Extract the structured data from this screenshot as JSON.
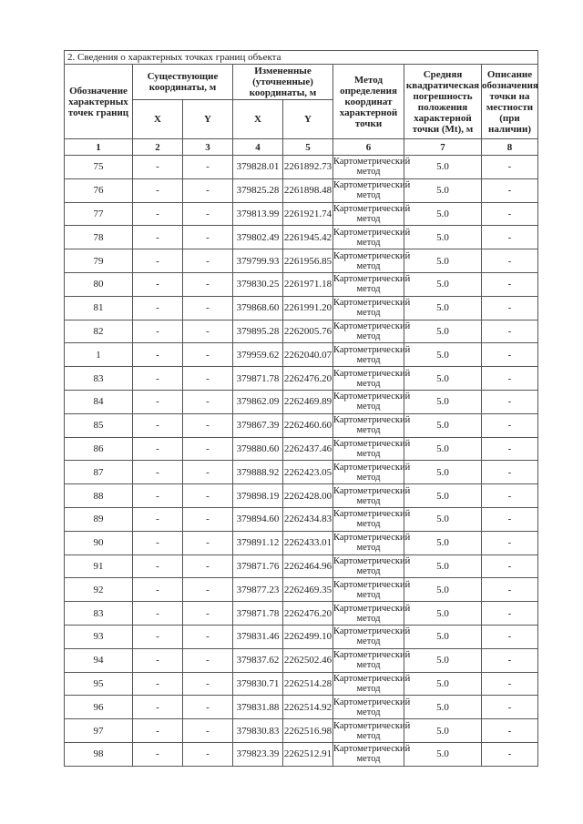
{
  "section_title": "2. Сведения о характерных точках границ объекта",
  "headers": {
    "point": "Обозначение характерных точек границ",
    "existing": "Существующие координаты, м",
    "changed": "Измененные (уточненные) координаты, м",
    "x": "X",
    "y": "Y",
    "method": "Метод определения координат характерной точки",
    "error": "Средняя квадратическая погрешность положения характерной точки (Mt), м",
    "description": "Описание обозначения точки на местности (при наличии)",
    "col_numbers": [
      "1",
      "2",
      "3",
      "4",
      "5",
      "6",
      "7",
      "8"
    ]
  },
  "rows": [
    [
      "75",
      "-",
      "-",
      "379828.01",
      "2261892.73",
      "Картометрический метод",
      "5.0",
      "-"
    ],
    [
      "76",
      "-",
      "-",
      "379825.28",
      "2261898.48",
      "Картометрический метод",
      "5.0",
      "-"
    ],
    [
      "77",
      "-",
      "-",
      "379813.99",
      "2261921.74",
      "Картометрический метод",
      "5.0",
      "-"
    ],
    [
      "78",
      "-",
      "-",
      "379802.49",
      "2261945.42",
      "Картометрический метод",
      "5.0",
      "-"
    ],
    [
      "79",
      "-",
      "-",
      "379799.93",
      "2261956.85",
      "Картометрический метод",
      "5.0",
      "-"
    ],
    [
      "80",
      "-",
      "-",
      "379830.25",
      "2261971.18",
      "Картометрический метод",
      "5.0",
      "-"
    ],
    [
      "81",
      "-",
      "-",
      "379868.60",
      "2261991.20",
      "Картометрический метод",
      "5.0",
      "-"
    ],
    [
      "82",
      "-",
      "-",
      "379895.28",
      "2262005.76",
      "Картометрический метод",
      "5.0",
      "-"
    ],
    [
      "1",
      "-",
      "-",
      "379959.62",
      "2262040.07",
      "Картометрический метод",
      "5.0",
      "-"
    ],
    [
      "83",
      "-",
      "-",
      "379871.78",
      "2262476.20",
      "Картометрический метод",
      "5.0",
      "-"
    ],
    [
      "84",
      "-",
      "-",
      "379862.09",
      "2262469.89",
      "Картометрический метод",
      "5.0",
      "-"
    ],
    [
      "85",
      "-",
      "-",
      "379867.39",
      "2262460.60",
      "Картометрический метод",
      "5.0",
      "-"
    ],
    [
      "86",
      "-",
      "-",
      "379880.60",
      "2262437.46",
      "Картометрический метод",
      "5.0",
      "-"
    ],
    [
      "87",
      "-",
      "-",
      "379888.92",
      "2262423.05",
      "Картометрический метод",
      "5.0",
      "-"
    ],
    [
      "88",
      "-",
      "-",
      "379898.19",
      "2262428.00",
      "Картометрический метод",
      "5.0",
      "-"
    ],
    [
      "89",
      "-",
      "-",
      "379894.60",
      "2262434.83",
      "Картометрический метод",
      "5.0",
      "-"
    ],
    [
      "90",
      "-",
      "-",
      "379891.12",
      "2262433.01",
      "Картометрический метод",
      "5.0",
      "-"
    ],
    [
      "91",
      "-",
      "-",
      "379871.76",
      "2262464.96",
      "Картометрический метод",
      "5.0",
      "-"
    ],
    [
      "92",
      "-",
      "-",
      "379877.23",
      "2262469.35",
      "Картометрический метод",
      "5.0",
      "-"
    ],
    [
      "83",
      "-",
      "-",
      "379871.78",
      "2262476.20",
      "Картометрический метод",
      "5.0",
      "-"
    ],
    [
      "93",
      "-",
      "-",
      "379831.46",
      "2262499.10",
      "Картометрический метод",
      "5.0",
      "-"
    ],
    [
      "94",
      "-",
      "-",
      "379837.62",
      "2262502.46",
      "Картометрический метод",
      "5.0",
      "-"
    ],
    [
      "95",
      "-",
      "-",
      "379830.71",
      "2262514.28",
      "Картометрический метод",
      "5.0",
      "-"
    ],
    [
      "96",
      "-",
      "-",
      "379831.88",
      "2262514.92",
      "Картометрический метод",
      "5.0",
      "-"
    ],
    [
      "97",
      "-",
      "-",
      "379830.83",
      "2262516.98",
      "Картометрический метод",
      "5.0",
      "-"
    ],
    [
      "98",
      "-",
      "-",
      "379823.39",
      "2262512.91",
      "Картометрический метод",
      "5.0",
      "-"
    ]
  ]
}
